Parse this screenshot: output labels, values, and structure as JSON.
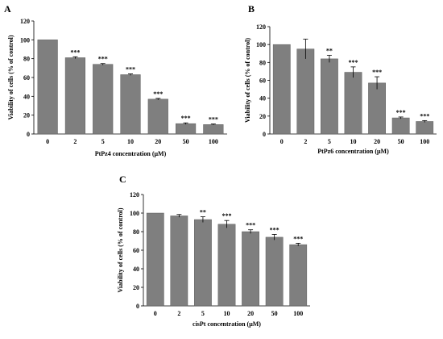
{
  "chart_data": [
    {
      "panel": "A",
      "type": "bar",
      "categories": [
        "0",
        "2",
        "5",
        "10",
        "20",
        "50",
        "100"
      ],
      "values": [
        100,
        81,
        74,
        63,
        37,
        11,
        10
      ],
      "errors": [
        0,
        1,
        0.8,
        0.8,
        0.8,
        0.8,
        0.6
      ],
      "significance": [
        "",
        "***",
        "***",
        "***",
        "***",
        "***",
        "***"
      ],
      "xlabel": "PtPz4 concentration  (μM)",
      "ylabel": "Viability of cells (% of control)",
      "ylim": [
        0,
        120
      ],
      "yticks": [
        0,
        20,
        40,
        60,
        80,
        100,
        120
      ],
      "bar_color": "#7f7f7f",
      "grid": false
    },
    {
      "panel": "B",
      "type": "bar",
      "categories": [
        "0",
        "2",
        "5",
        "10",
        "20",
        "50",
        "100"
      ],
      "values": [
        100,
        95,
        84,
        69,
        57,
        18,
        14
      ],
      "errors": [
        0,
        11,
        4,
        6,
        7,
        1,
        1
      ],
      "significance": [
        "",
        "",
        "**",
        "***",
        "***",
        "***",
        "***"
      ],
      "xlabel": "PtPz6 concentration  (μM)",
      "ylabel": "Viability of cells (% of control)",
      "ylim": [
        0,
        120
      ],
      "yticks": [
        0,
        20,
        40,
        60,
        80,
        100,
        120
      ],
      "bar_color": "#7f7f7f",
      "grid": false
    },
    {
      "panel": "C",
      "type": "bar",
      "categories": [
        "0",
        "2",
        "5",
        "10",
        "20",
        "50",
        "100"
      ],
      "values": [
        100,
        97,
        93,
        88,
        80,
        74,
        66
      ],
      "errors": [
        0,
        1.5,
        3,
        4,
        2,
        3,
        1.5
      ],
      "significance": [
        "",
        "",
        "**",
        "***",
        "***",
        "***",
        "***"
      ],
      "xlabel": "cisPt concentration  (μM)",
      "ylabel": "Viability of cells (% of control)",
      "ylim": [
        0,
        120
      ],
      "yticks": [
        0,
        20,
        40,
        60,
        80,
        100,
        120
      ],
      "bar_color": "#7f7f7f",
      "grid": false
    }
  ]
}
